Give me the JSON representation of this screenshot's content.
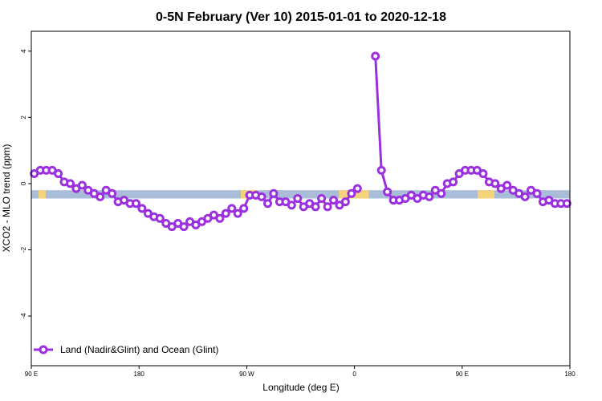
{
  "chart_data": {
    "type": "line",
    "title": "0-5N February (Ver 10)   2015-01-01 to 2020-12-18",
    "xlabel": "Longitude (deg E)",
    "ylabel": "XCO2 - MLO trend (ppm)",
    "xlim": [
      90,
      540
    ],
    "ylim": [
      -5.5,
      4.6
    ],
    "x_ticks": [
      {
        "value": 90,
        "label": "90 E"
      },
      {
        "value": 180,
        "label": "180"
      },
      {
        "value": 270,
        "label": "90 W"
      },
      {
        "value": 360,
        "label": "0"
      },
      {
        "value": 450,
        "label": "90 E"
      },
      {
        "value": 540,
        "label": "180"
      }
    ],
    "y_ticks": [
      {
        "value": 4,
        "label": "4"
      },
      {
        "value": 2,
        "label": "2"
      },
      {
        "value": 0,
        "label": "0"
      },
      {
        "value": -2,
        "label": "-2"
      },
      {
        "value": -4,
        "label": "-4"
      }
    ],
    "grid": false,
    "legend_position": "bottom-left",
    "surface_band": {
      "y_range": [
        -0.45,
        -0.2
      ],
      "ocean_color": "#a9bcd8",
      "land_color": "#f5d37a",
      "land_segments": [
        [
          96,
          102
        ],
        [
          265,
          278
        ],
        [
          347,
          372
        ],
        [
          463,
          477
        ]
      ]
    },
    "series": [
      {
        "name": "Land (Nadir&Glint) and Ocean (Glint)",
        "color": "#9b30e0",
        "segments": [
          {
            "x": [
              92.5,
              97.5,
              102.5,
              107.5,
              112.5,
              117.5,
              122.5,
              127.5,
              132.5,
              137.5,
              142.5,
              147.5,
              152.5,
              157.5,
              162.5,
              167.5,
              172.5,
              177.5,
              182.5,
              187.5,
              192.5,
              197.5,
              202.5,
              207.5,
              212.5,
              217.5,
              222.5,
              227.5,
              232.5,
              237.5,
              242.5,
              247.5,
              252.5,
              257.5,
              262.5,
              267.5,
              272.5,
              277.5,
              282.5,
              287.5,
              292.5,
              297.5,
              302.5,
              307.5,
              312.5,
              317.5,
              322.5,
              327.5,
              332.5,
              337.5,
              342.5,
              347.5,
              352.5,
              357.5,
              362.5
            ],
            "y": [
              0.3,
              0.4,
              0.4,
              0.4,
              0.3,
              0.05,
              0.0,
              -0.15,
              -0.05,
              -0.2,
              -0.3,
              -0.4,
              -0.2,
              -0.3,
              -0.55,
              -0.5,
              -0.6,
              -0.6,
              -0.75,
              -0.9,
              -1.0,
              -1.05,
              -1.2,
              -1.3,
              -1.2,
              -1.3,
              -1.15,
              -1.25,
              -1.15,
              -1.05,
              -0.95,
              -1.05,
              -0.9,
              -0.75,
              -0.9,
              -0.75,
              -0.35,
              -0.35,
              -0.4,
              -0.6,
              -0.3,
              -0.55,
              -0.55,
              -0.65,
              -0.45,
              -0.7,
              -0.6,
              -0.7,
              -0.45,
              -0.7,
              -0.5,
              -0.65,
              -0.55,
              -0.3,
              -0.15
            ]
          },
          {
            "x": [
              377.5,
              382.5,
              387.5,
              392.5,
              397.5,
              402.5,
              407.5,
              412.5,
              417.5,
              422.5,
              427.5,
              432.5,
              437.5,
              442.5,
              447.5,
              452.5,
              457.5,
              462.5,
              467.5,
              472.5,
              477.5,
              482.5,
              487.5,
              492.5,
              497.5,
              502.5,
              507.5,
              512.5,
              517.5,
              522.5,
              527.5,
              532.5,
              537.5
            ],
            "y": [
              3.85,
              0.4,
              -0.25,
              -0.5,
              -0.5,
              -0.45,
              -0.35,
              -0.45,
              -0.35,
              -0.4,
              -0.2,
              -0.3,
              0.0,
              0.05,
              0.3,
              0.4,
              0.4,
              0.4,
              0.3,
              0.05,
              0.0,
              -0.15,
              -0.05,
              -0.2,
              -0.3,
              -0.4,
              -0.2,
              -0.3,
              -0.55,
              -0.5,
              -0.6,
              -0.6,
              -0.6
            ]
          }
        ]
      }
    ]
  }
}
